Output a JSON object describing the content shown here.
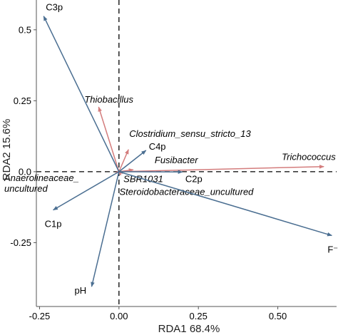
{
  "chart_data": {
    "type": "biplot",
    "xlabel": "RDA1 68.4%",
    "ylabel": "RDA2 15.6%",
    "xlim": [
      -0.26,
      0.685
    ],
    "ylim": [
      -0.475,
      0.605
    ],
    "xticks": [
      -0.25,
      0,
      0.25,
      0.5
    ],
    "xtick_labels": [
      "-0.25",
      "0.00",
      "0.25",
      "0.50"
    ],
    "yticks": [
      -0.25,
      0,
      0.25,
      0.5
    ],
    "ytick_labels": [
      "-0.25",
      "0.0",
      "0.25",
      "0.5"
    ],
    "zero_lines": "dashed",
    "grid": false,
    "origin": [
      0,
      0
    ],
    "environmental_vectors": {
      "color": "#4a6e91",
      "vectors": [
        {
          "label": "C3p",
          "x": -0.237,
          "y": 0.548
        },
        {
          "label": "C4p",
          "x": 0.085,
          "y": 0.075
        },
        {
          "label": "C2p",
          "x": 0.2,
          "y": -0.001
        },
        {
          "label": "C1p",
          "x": -0.207,
          "y": -0.135
        },
        {
          "label": "pH",
          "x": -0.086,
          "y": -0.405
        },
        {
          "label": "F⁻",
          "x": 0.67,
          "y": -0.225
        }
      ]
    },
    "taxa_vectors": {
      "color": "#d47d7d",
      "vectors": [
        {
          "label": "Thiobacillus",
          "x": -0.064,
          "y": 0.228
        },
        {
          "label": "Clostridium_sensu_stricto_13",
          "x": 0.03,
          "y": 0.078
        },
        {
          "label": "Fusibacter",
          "x": 0.045,
          "y": 0.007
        },
        {
          "label": "Trichococcus",
          "x": 0.645,
          "y": 0.018
        },
        {
          "label": "SBR1031",
          "x": 0.012,
          "y": -0.006
        },
        {
          "label": "Anaerolineaceae_uncultured",
          "x": -0.01,
          "y": -0.003
        },
        {
          "label": "Steroidobacteraceae_uncultured",
          "x": 0.006,
          "y": -0.012
        }
      ]
    }
  }
}
